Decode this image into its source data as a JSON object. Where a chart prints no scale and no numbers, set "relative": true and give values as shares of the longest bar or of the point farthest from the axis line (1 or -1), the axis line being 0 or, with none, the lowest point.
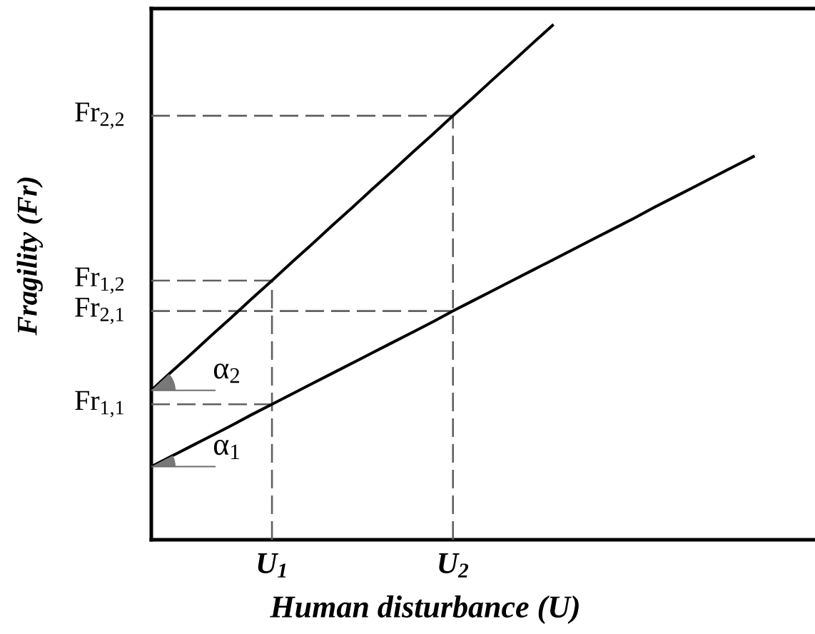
{
  "chart_data": {
    "type": "line",
    "relative": true,
    "grid": "x",
    "xlabel": "Human disturbance (U)",
    "ylabel": "Fragility (Fr)",
    "categories": [
      null,
      null,
      null,
      null,
      null,
      null,
      "U$_{1}$",
      null,
      null,
      null,
      null,
      null,
      null,
      null,
      null,
      "U$_{2}$",
      null,
      null,
      null,
      null,
      null,
      null,
      null,
      null,
      null,
      null,
      null,
      null,
      null,
      null,
      null,
      null,
      null,
      null
    ],
    "series": [
      {
        "color": "#000000",
        "values": [
          0.29,
          0.326,
          0.361,
          0.397,
          0.432,
          0.468,
          0.503,
          0.539,
          0.574,
          0.61,
          0.645,
          0.681,
          0.716,
          0.752,
          0.787,
          0.823,
          0.858,
          0.894,
          0.929,
          0.965,
          1.0,
          null,
          null,
          null,
          null,
          null,
          null,
          null,
          null,
          null,
          null,
          null,
          null,
          null
        ]
      },
      {
        "color": "#000000",
        "values": [
          0.142,
          0.162,
          0.182,
          0.202,
          0.222,
          0.243,
          0.263,
          0.283,
          0.303,
          0.323,
          0.343,
          0.363,
          0.383,
          0.403,
          0.423,
          0.444,
          0.464,
          0.484,
          0.504,
          0.524,
          0.544,
          0.564,
          0.584,
          0.604,
          0.624,
          0.645,
          0.665,
          0.685,
          0.705,
          0.725,
          0.745,
          null,
          null,
          null
        ]
      }
    ],
    "annotations": [
      {
        "text": "Fr$_{2,2}$",
        "x": "U$_{2}$",
        "y": 0.823
      },
      {
        "text": "Fr$_{1,2}$",
        "x": "U$_{1}$",
        "y": 0.503
      },
      {
        "text": "Fr$_{2,1}$",
        "x": "U$_{2}$",
        "y": 0.444
      },
      {
        "text": "Fr$_{1,1}$",
        "x": "U$_{1}$",
        "y": 0.263
      },
      "α$_{2}$",
      "α$_{1}$"
    ]
  }
}
